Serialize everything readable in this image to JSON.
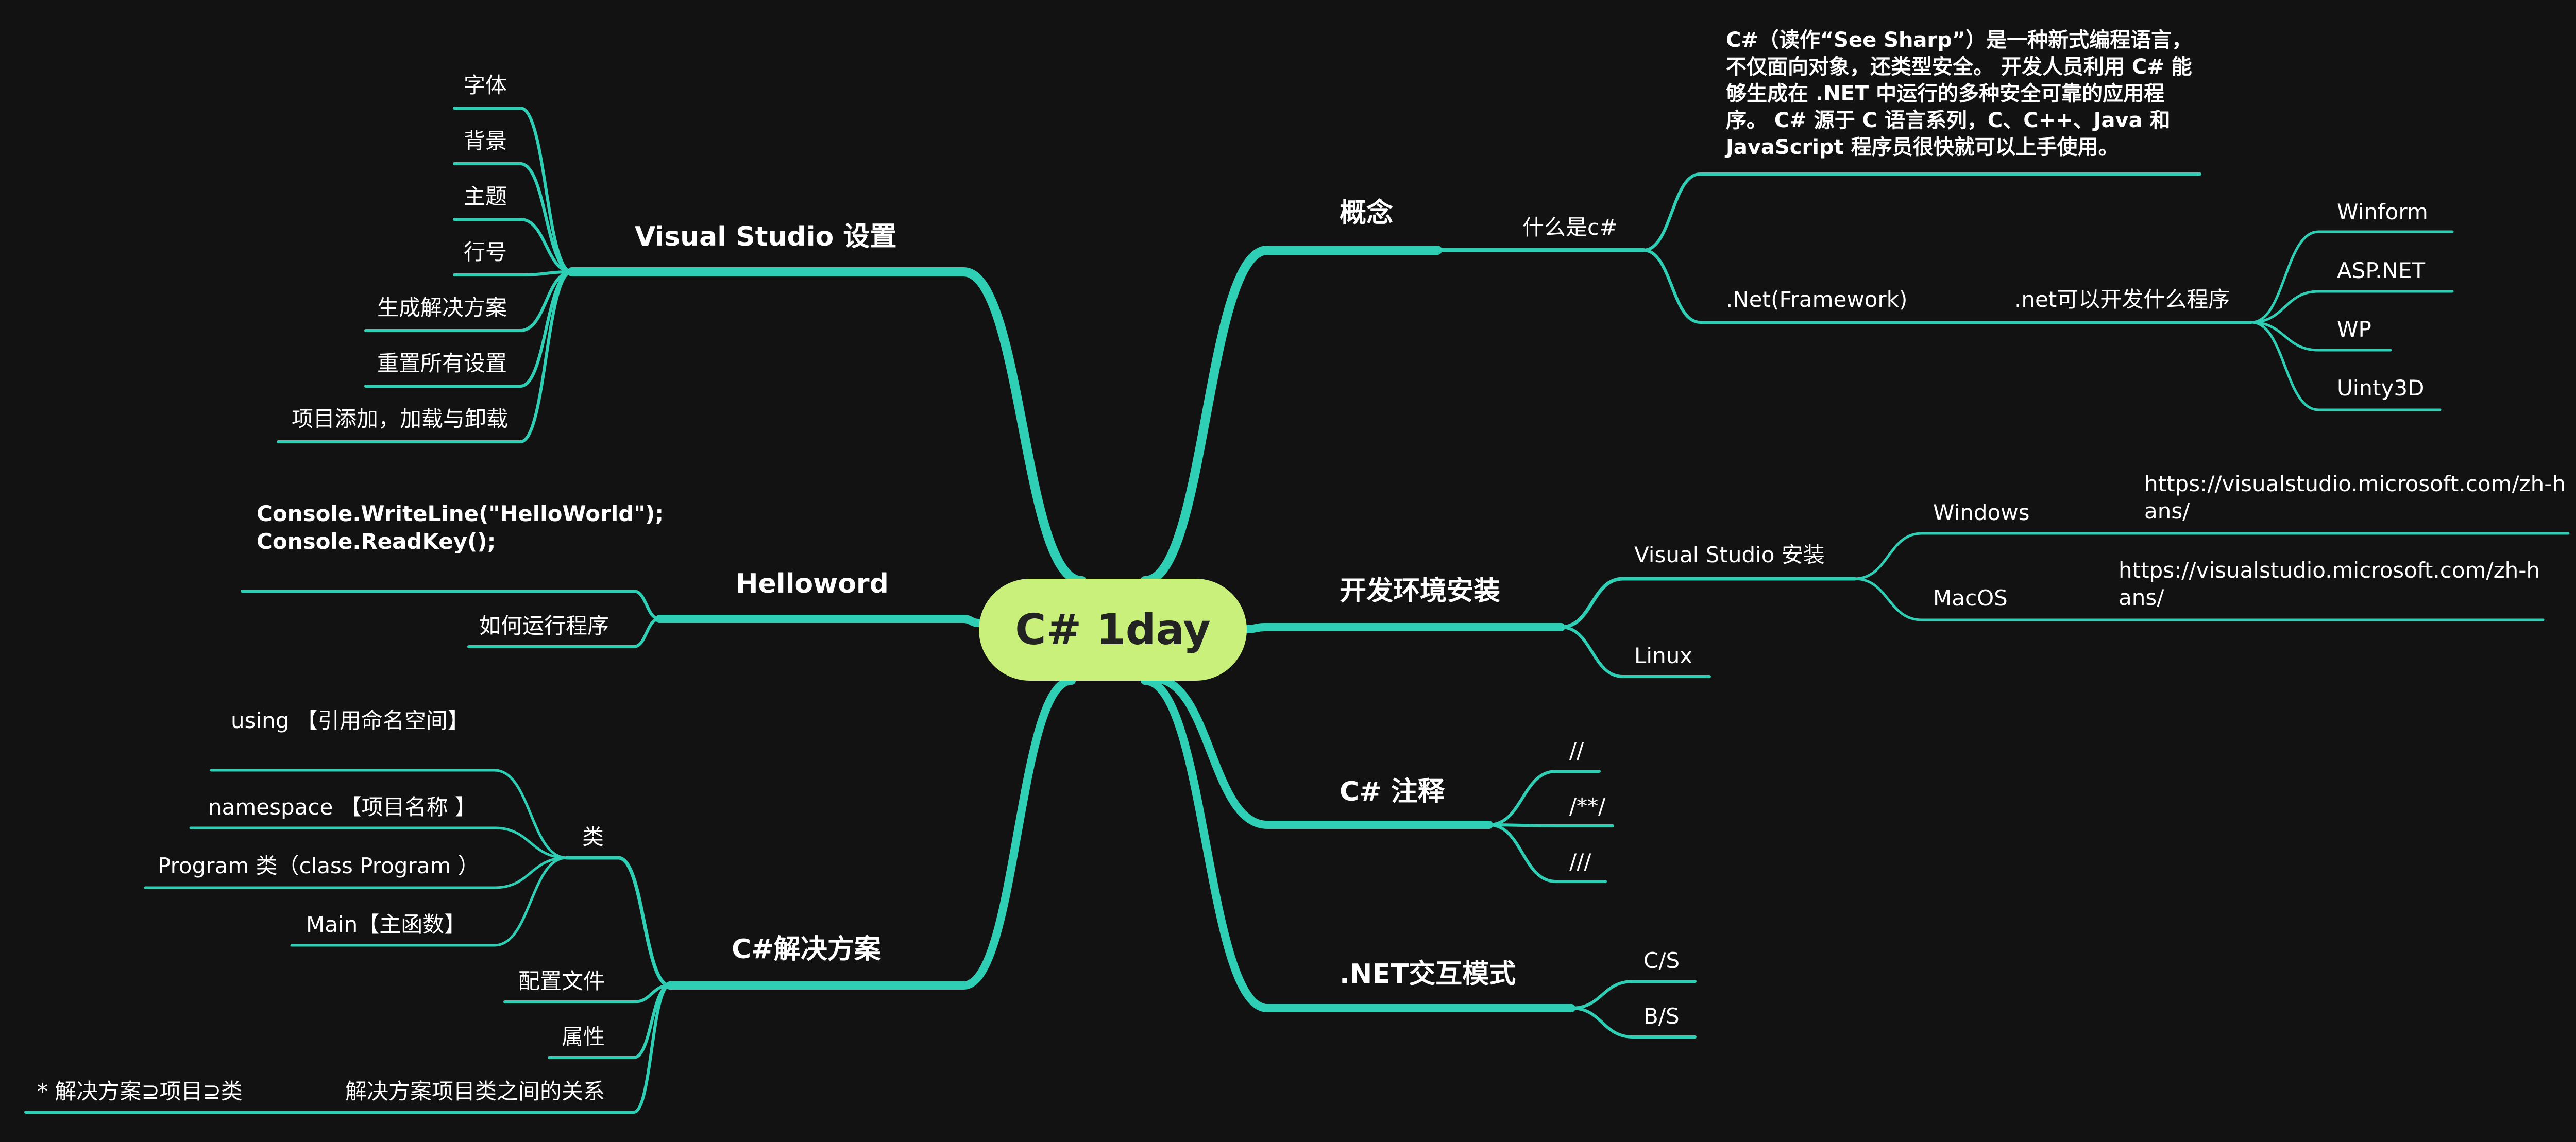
{
  "colors": {
    "background": "#121212",
    "line": "#2ecfb4",
    "root_fill": "#caf07c",
    "text": "#ffffff"
  },
  "root": "C# 1day",
  "concept": {
    "title": "概念",
    "what_is": "什么是c#",
    "definition": "C#（读作“See Sharp”）是一种新式编程语言，不仅面向对象，还类型安全。 开发人员利用 C# 能够生成在 .NET 中运行的多种安全可靠的应用程序。 C# 源于 C 语言系列，C、C++、Java 和 JavaScript 程序员很快就可以上手使用。",
    "framework": ".Net(Framework)",
    "can_develop": ".net可以开发什么程序",
    "apps": [
      "Winform",
      "ASP.NET",
      "WP",
      "Uinty3D"
    ]
  },
  "env": {
    "title": "开发环境安装",
    "vs_install": "Visual Studio 安装",
    "windows": "Windows",
    "windows_url": "https://visualstudio.microsoft.com/zh-hans/",
    "macos": "MacOS",
    "macos_url": "https://visualstudio.microsoft.com/zh-hans/",
    "linux": "Linux"
  },
  "comments": {
    "title": "C# 注释",
    "items": [
      "//",
      "/**/",
      "///"
    ]
  },
  "interaction": {
    "title": ".NET交互模式",
    "items": [
      "C/S",
      "B/S"
    ]
  },
  "vs_settings": {
    "title": "Visual Studio 设置",
    "items": [
      "字体",
      "背景",
      "主题",
      "行号",
      "生成解决方案",
      "重置所有设置",
      "项目添加，加载与卸载"
    ]
  },
  "helloword": {
    "title": "Helloword",
    "code_line1": "Console.WriteLine(\"HelloWorld\");",
    "code_line2": "Console.ReadKey();",
    "how_to_run": "如何运行程序"
  },
  "solution": {
    "title": "C#解决方案",
    "class_label": "类",
    "class_items": [
      "using 【引用命名空间】",
      "namespace 【项目名称 】",
      "Program 类（class Program ）",
      "Main【主函数】"
    ],
    "config": "配置文件",
    "props": "属性",
    "relation": "解决方案项目类之间的关系",
    "relation_detail": "* 解决方案⊇项目⊇类"
  }
}
